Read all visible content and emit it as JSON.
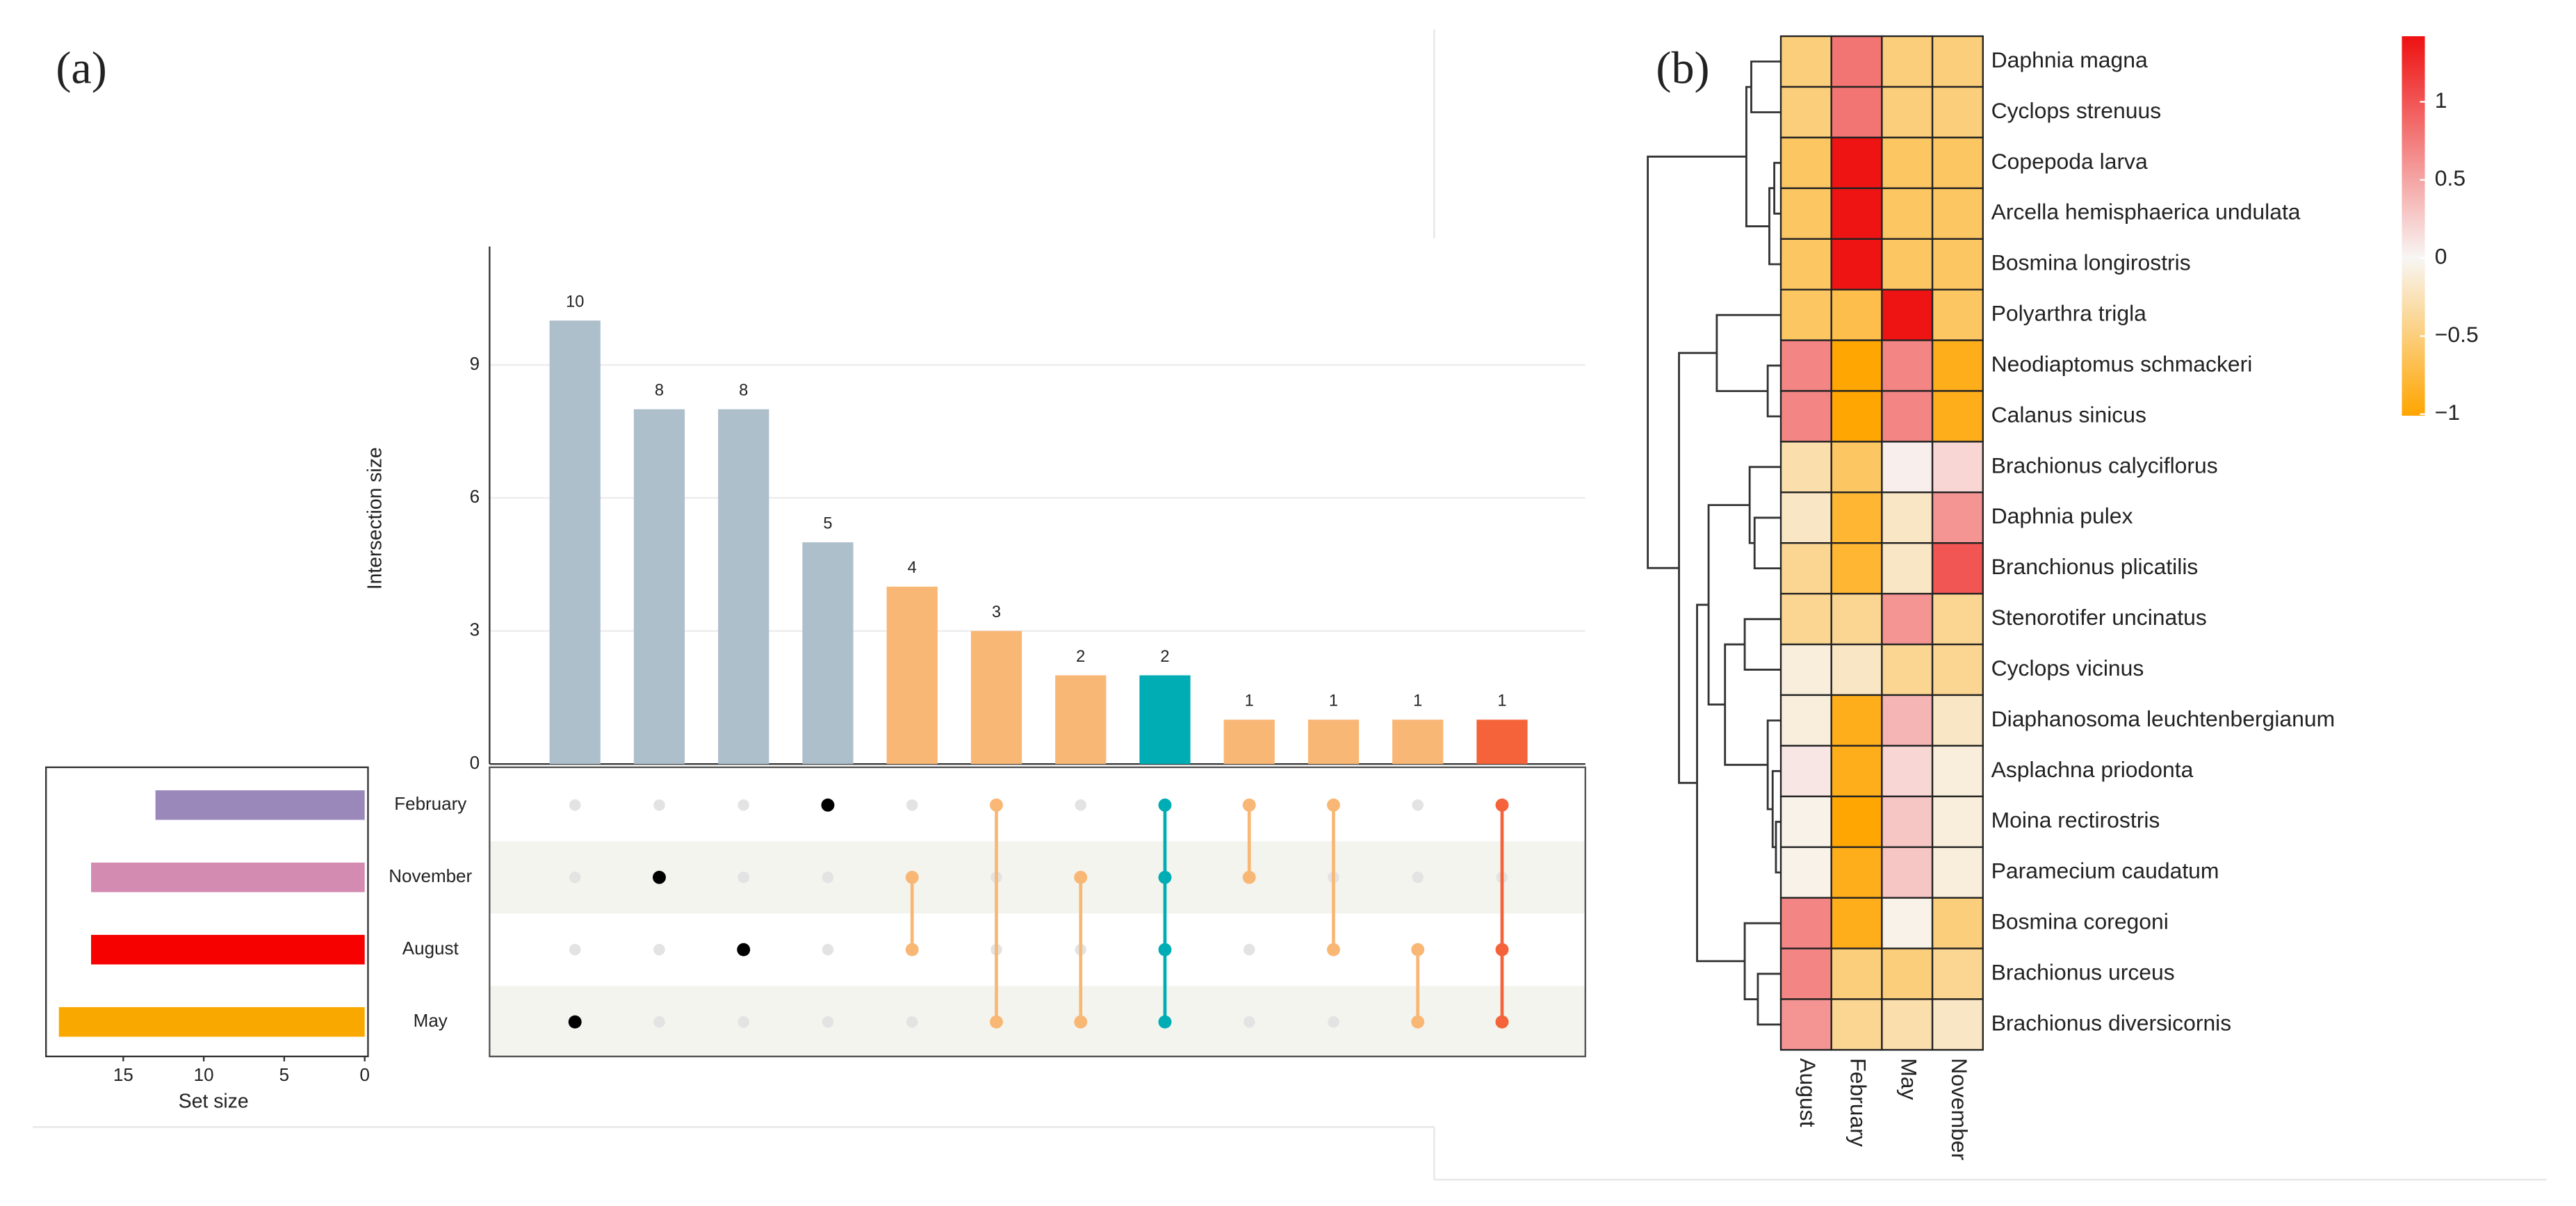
{
  "chart_data": [
    {
      "type": "upset",
      "label": "(a)",
      "ylabel": "Intersection size",
      "xlabel": "Set size",
      "sets": [
        "February",
        "November",
        "August",
        "May"
      ],
      "set_sizes": [
        13,
        17,
        17,
        19
      ],
      "set_colors": [
        "#9b88bb",
        "#d38bb2",
        "#f60000",
        "#f9a800"
      ],
      "values": [
        10,
        8,
        8,
        5,
        4,
        3,
        2,
        2,
        1,
        1,
        1,
        1
      ],
      "members": [
        [
          3
        ],
        [
          1
        ],
        [
          2
        ],
        [
          0
        ],
        [
          1,
          2
        ],
        [
          0,
          3
        ],
        [
          1,
          3
        ],
        [
          0,
          1,
          2,
          3
        ],
        [
          0,
          1
        ],
        [
          0,
          2
        ],
        [
          2,
          3
        ],
        [
          0,
          2,
          3
        ]
      ],
      "colors": [
        "#aebfcc",
        "#aebfcc",
        "#aebfcc",
        "#aebfcc",
        "#f9b775",
        "#f9b775",
        "#f9b775",
        "#00adb5",
        "#f9b775",
        "#f9b775",
        "#f9b775",
        "#f4633a"
      ],
      "dot_colors": [
        "#000000",
        "#000000",
        "#000000",
        "#000000",
        "#f9b775",
        "#f9b775",
        "#f9b775",
        "#00adb5",
        "#f9b775",
        "#f9b775",
        "#f9b775",
        "#f4633a"
      ],
      "ylim": [
        0,
        11.67
      ],
      "yticks": [
        0,
        3,
        6,
        9
      ],
      "xlim": [
        0,
        19.8
      ],
      "xticks": [
        0,
        5,
        10,
        15
      ],
      "x_reversed": true,
      "grid": true
    },
    {
      "type": "heatmap",
      "label": "(b)",
      "rows": [
        "Daphnia magna",
        "Cyclops strenuus",
        "Copepoda larva",
        "Arcella hemisphaerica undulata",
        "Bosmina longirostris",
        "Polyarthra trigla",
        "Neodiaptomus schmackeri",
        "Calanus sinicus",
        "Brachionus calyciflorus",
        "Daphnia pulex",
        "Branchionus plicatilis",
        "Stenorotifer uncinatus",
        "Cyclops vicinus",
        "Diaphanosoma leuchtenbergianum",
        "Asplachna priodonta",
        "Moina rectirostris",
        "Paramecium caudatum",
        "Bosmina coregoni",
        "Brachionus urceus",
        "Brachionus diversicornis"
      ],
      "columns": [
        "August",
        "February",
        "May",
        "November"
      ],
      "values": [
        [
          -0.5,
          0.8,
          -0.5,
          -0.5
        ],
        [
          -0.5,
          0.8,
          -0.5,
          -0.5
        ],
        [
          -0.6,
          1.4,
          -0.6,
          -0.6
        ],
        [
          -0.6,
          1.4,
          -0.6,
          -0.6
        ],
        [
          -0.6,
          1.4,
          -0.6,
          -0.6
        ],
        [
          -0.6,
          -0.7,
          1.4,
          -0.6
        ],
        [
          0.7,
          -1.0,
          0.7,
          -0.9
        ],
        [
          0.7,
          -1.0,
          0.7,
          -0.9
        ],
        [
          -0.3,
          -0.6,
          0.05,
          0.2
        ],
        [
          -0.2,
          -0.8,
          -0.2,
          0.6
        ],
        [
          -0.4,
          -0.8,
          -0.2,
          1.0
        ],
        [
          -0.4,
          -0.4,
          0.6,
          -0.4
        ],
        [
          -0.1,
          -0.2,
          -0.4,
          -0.4
        ],
        [
          -0.1,
          -0.9,
          0.4,
          -0.2
        ],
        [
          0.1,
          -0.9,
          0.2,
          -0.1
        ],
        [
          -0.05,
          -1.0,
          0.3,
          -0.1
        ],
        [
          -0.05,
          -0.9,
          0.3,
          -0.1
        ],
        [
          0.7,
          -0.9,
          -0.05,
          -0.5
        ],
        [
          0.7,
          -0.5,
          -0.5,
          -0.4
        ],
        [
          0.6,
          -0.4,
          -0.3,
          -0.2
        ]
      ],
      "clim": [
        -1.01,
        1.42
      ],
      "cticks": [
        1,
        0.5,
        0,
        {
          "value": -0.5,
          "label": "−0.5"
        },
        {
          "value": -1,
          "label": "−1"
        }
      ],
      "colorscale": {
        "low": "#ffa500",
        "mid": "#f8f6f4",
        "high": "#ee1111"
      }
    }
  ]
}
